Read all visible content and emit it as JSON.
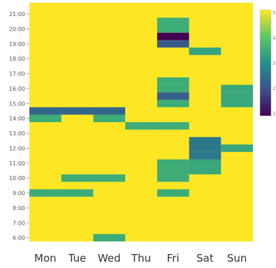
{
  "chart_data": {
    "type": "heatmap",
    "title": "",
    "xlabel": "",
    "ylabel": "",
    "x_categories": [
      "Mon",
      "Tue",
      "Wed",
      "Thu",
      "Fri",
      "Sat",
      "Sun"
    ],
    "y_ticks": [
      "6:00",
      "7:00",
      "8:00",
      "9:00",
      "10:00",
      "11:00",
      "12:00",
      "13:00",
      "14:00",
      "15:00",
      "16:00",
      "17:00",
      "18:00",
      "19:00",
      "20:00",
      "21:00"
    ],
    "y_range": [
      5.75,
      21.75
    ],
    "y_step_hours": 0.5,
    "colorscale": "viridis",
    "value_range": [
      0,
      1
    ],
    "default_value": 1,
    "colorbar_labels": [
      "5",
      "4",
      "3",
      "2",
      "1"
    ],
    "cells": [
      {
        "day": "Mon",
        "start": 8.75,
        "end": 9.25,
        "value": 0.62
      },
      {
        "day": "Mon",
        "start": 13.75,
        "end": 14.25,
        "value": 0.62
      },
      {
        "day": "Mon",
        "start": 14.25,
        "end": 14.75,
        "value": 0.33
      },
      {
        "day": "Tue",
        "start": 8.75,
        "end": 9.25,
        "value": 0.62
      },
      {
        "day": "Tue",
        "start": 9.75,
        "end": 10.25,
        "value": 0.62
      },
      {
        "day": "Tue",
        "start": 14.25,
        "end": 14.75,
        "value": 0.33
      },
      {
        "day": "Wed",
        "start": 5.75,
        "end": 6.25,
        "value": 0.62
      },
      {
        "day": "Wed",
        "start": 9.75,
        "end": 10.25,
        "value": 0.62
      },
      {
        "day": "Wed",
        "start": 13.75,
        "end": 14.25,
        "value": 0.62
      },
      {
        "day": "Wed",
        "start": 14.25,
        "end": 14.75,
        "value": 0.33
      },
      {
        "day": "Thu",
        "start": 13.25,
        "end": 13.75,
        "value": 0.62
      },
      {
        "day": "Fri",
        "start": 8.75,
        "end": 9.25,
        "value": 0.62
      },
      {
        "day": "Fri",
        "start": 9.75,
        "end": 10.25,
        "value": 0.62
      },
      {
        "day": "Fri",
        "start": 10.25,
        "end": 10.75,
        "value": 0.62
      },
      {
        "day": "Fri",
        "start": 10.75,
        "end": 11.25,
        "value": 0.62
      },
      {
        "day": "Fri",
        "start": 13.25,
        "end": 13.75,
        "value": 0.62
      },
      {
        "day": "Fri",
        "start": 14.75,
        "end": 15.25,
        "value": 0.62
      },
      {
        "day": "Fri",
        "start": 15.25,
        "end": 15.75,
        "value": 0.3
      },
      {
        "day": "Fri",
        "start": 15.75,
        "end": 16.25,
        "value": 0.62
      },
      {
        "day": "Fri",
        "start": 16.25,
        "end": 16.75,
        "value": 0.62
      },
      {
        "day": "Fri",
        "start": 18.75,
        "end": 19.25,
        "value": 0.28
      },
      {
        "day": "Fri",
        "start": 19.25,
        "end": 19.75,
        "value": 0.0
      },
      {
        "day": "Fri",
        "start": 19.75,
        "end": 20.25,
        "value": 0.62
      },
      {
        "day": "Fri",
        "start": 20.25,
        "end": 20.75,
        "value": 0.62
      },
      {
        "day": "Sat",
        "start": 10.25,
        "end": 10.75,
        "value": 0.6
      },
      {
        "day": "Sat",
        "start": 10.75,
        "end": 11.25,
        "value": 0.6
      },
      {
        "day": "Sat",
        "start": 11.25,
        "end": 11.75,
        "value": 0.4
      },
      {
        "day": "Sat",
        "start": 11.75,
        "end": 12.25,
        "value": 0.4
      },
      {
        "day": "Sat",
        "start": 12.25,
        "end": 12.75,
        "value": 0.4
      },
      {
        "day": "Sat",
        "start": 18.25,
        "end": 18.75,
        "value": 0.58
      },
      {
        "day": "Sun",
        "start": 11.75,
        "end": 12.25,
        "value": 0.6
      },
      {
        "day": "Sun",
        "start": 14.75,
        "end": 15.25,
        "value": 0.6
      },
      {
        "day": "Sun",
        "start": 15.25,
        "end": 15.75,
        "value": 0.6
      },
      {
        "day": "Sun",
        "start": 15.75,
        "end": 16.25,
        "value": 0.6
      }
    ]
  }
}
